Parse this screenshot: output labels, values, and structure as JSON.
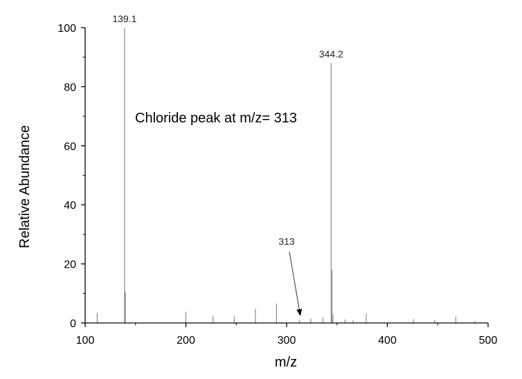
{
  "chart_data": {
    "type": "bar",
    "title": "",
    "xlabel": "m/z",
    "ylabel": "Relative Abundance",
    "xlim": [
      100,
      500
    ],
    "ylim": [
      0,
      100
    ],
    "xticks": [
      100,
      200,
      300,
      400,
      500
    ],
    "yticks": [
      0,
      20,
      40,
      60,
      80,
      100
    ],
    "grid": false,
    "series": [
      {
        "peaks": [
          {
            "mz": 112,
            "intensity": 3.5
          },
          {
            "mz": 139.1,
            "intensity": 100
          },
          {
            "mz": 140,
            "intensity": 10.5
          },
          {
            "mz": 200,
            "intensity": 3.8
          },
          {
            "mz": 227,
            "intensity": 2.5
          },
          {
            "mz": 248,
            "intensity": 2.2
          },
          {
            "mz": 269,
            "intensity": 4.8
          },
          {
            "mz": 290,
            "intensity": 6.6
          },
          {
            "mz": 313,
            "intensity": 1.0
          },
          {
            "mz": 324,
            "intensity": 1.5
          },
          {
            "mz": 336,
            "intensity": 2.0
          },
          {
            "mz": 344.2,
            "intensity": 88
          },
          {
            "mz": 345,
            "intensity": 18
          },
          {
            "mz": 346,
            "intensity": 3.0
          },
          {
            "mz": 358,
            "intensity": 1.2
          },
          {
            "mz": 366,
            "intensity": 0.9
          },
          {
            "mz": 379,
            "intensity": 3.2
          },
          {
            "mz": 426,
            "intensity": 1.3
          },
          {
            "mz": 447,
            "intensity": 1.0
          },
          {
            "mz": 468,
            "intensity": 2.2
          },
          {
            "mz": 487,
            "intensity": 0.6
          }
        ]
      }
    ],
    "peak_labels": [
      {
        "mz": 139.1,
        "text": "139.1"
      },
      {
        "mz": 344.2,
        "text": "344.2"
      }
    ],
    "annotations": [
      {
        "text": "Chloride peak at m/z= 313",
        "type": "note"
      },
      {
        "text": "313",
        "type": "arrow",
        "target_mz": 313
      }
    ]
  }
}
